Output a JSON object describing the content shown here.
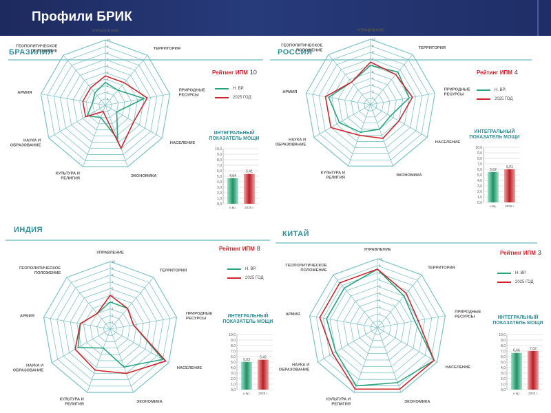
{
  "slide_title": "Профили БРИК",
  "axis_labels": [
    "УПРАВЛЕНИЕ",
    "ТЕРРИТОРИЯ",
    "ПРИРОДНЫЕ РЕСУРСЫ",
    "НАСЕЛЕНИЕ",
    "ЭКОНОМИКА",
    "КУЛЬТУРА И РЕЛИГИЯ",
    "НАУКА И ОБРАЗОВАНИЕ",
    "АРМИЯ",
    "ГЕОПОЛИТИЧЕСКОЕ ПОЛОЖЕНИЕ"
  ],
  "scale_ticks": [
    "1",
    "2",
    "3",
    "4",
    "5",
    "6",
    "7",
    "8",
    "9",
    "10"
  ],
  "legend": {
    "current": "Н. ВР.",
    "forecast": "2025 ГОД"
  },
  "rating_label": "Рейтинг ИПМ",
  "ipm_title": "ИНТЕГРАЛЬНЫЙ ПОКАЗАТЕЛЬ МОЩИ",
  "bar_ticks": [
    "0,0",
    "1,0",
    "2,0",
    "3,0",
    "4,0",
    "5,0",
    "6,0",
    "7,0",
    "8,0",
    "9,0",
    "10,0"
  ],
  "bar_categories": [
    "н.вр.",
    "2025 г."
  ],
  "colors": {
    "current": "#27a57d",
    "forecast": "#d0232b",
    "grid": "#7cc3c9",
    "accent": "#2f8f9a"
  },
  "chart_data": [
    {
      "type": "radar",
      "country": "БРАЗИЛИЯ",
      "rating": "10",
      "series": [
        {
          "name": "Н. ВР.",
          "values": [
            3.5,
            3.0,
            6.0,
            2.0,
            5.5,
            2.0,
            3.2,
            2.0,
            2.5
          ]
        },
        {
          "name": "2025 ГОД",
          "values": [
            4.5,
            4.5,
            6.5,
            5.0,
            7.0,
            1.0,
            3.5,
            3.5,
            3.5
          ]
        }
      ],
      "ipm": {
        "values": [
          4.64,
          5.41
        ],
        "labels": [
          "4,64",
          "5,41"
        ],
        "ylim": [
          0,
          10
        ]
      }
    },
    {
      "type": "radar",
      "country": "РОССИЯ",
      "rating": "4",
      "series": [
        {
          "name": "Н. ВР.",
          "values": [
            6.0,
            6.5,
            6.0,
            3.5,
            4.0,
            4.5,
            5.5,
            6.5,
            4.5
          ]
        },
        {
          "name": "2025 ГОД",
          "values": [
            6.5,
            6.0,
            6.5,
            5.0,
            5.5,
            5.0,
            7.0,
            7.0,
            4.5
          ]
        }
      ],
      "ipm": {
        "values": [
          5.52,
          6.01
        ],
        "labels": [
          "5,52",
          "6,01"
        ],
        "ylim": [
          0,
          10
        ]
      }
    },
    {
      "type": "radar",
      "country": "ИНДИЯ",
      "rating": "8",
      "series": [
        {
          "name": "Н. ВР.",
          "values": [
            4.0,
            4.0,
            3.5,
            9.0,
            6.0,
            3.0,
            5.5,
            4.5,
            3.0
          ]
        },
        {
          "name": "2025 ГОД",
          "values": [
            5.0,
            4.0,
            3.5,
            9.5,
            7.0,
            6.5,
            6.0,
            4.5,
            3.0
          ]
        }
      ],
      "ipm": {
        "values": [
          5.03,
          5.42
        ],
        "labels": [
          "5,03",
          "5,42"
        ],
        "ylim": [
          0,
          10
        ]
      }
    },
    {
      "type": "radar",
      "country": "КИТАЙ",
      "rating": "3",
      "series": [
        {
          "name": "Н. ВР.",
          "values": [
            8.5,
            6.0,
            5.5,
            9.5,
            8.5,
            9.0,
            7.0,
            7.5,
            7.5
          ]
        },
        {
          "name": "2025 ГОД",
          "values": [
            8.5,
            6.5,
            6.0,
            9.5,
            9.5,
            9.5,
            7.5,
            8.5,
            8.5
          ]
        }
      ],
      "ipm": {
        "values": [
          6.66,
          7.02
        ],
        "labels": [
          "6,66",
          "7,02"
        ],
        "ylim": [
          0,
          10
        ]
      }
    }
  ]
}
